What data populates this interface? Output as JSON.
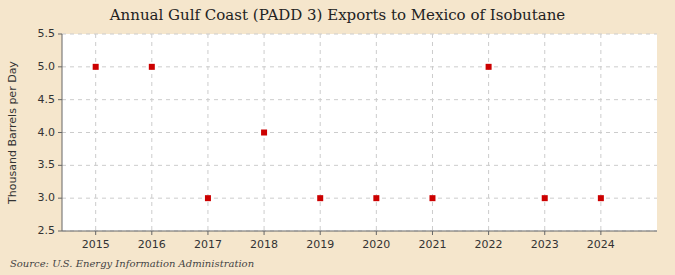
{
  "chart_data": {
    "type": "scatter",
    "title": "Annual Gulf Coast (PADD 3) Exports to Mexico of Isobutane",
    "y_label": "Thousand Barrels per Day",
    "annotations": [
      "Source: U.S. Energy Information Administration"
    ],
    "x": [
      2015,
      2016,
      2017,
      2018,
      2019,
      2020,
      2021,
      2022,
      2023,
      2024
    ],
    "values": [
      5.0,
      5.0,
      3.0,
      4.0,
      3.0,
      3.0,
      3.0,
      5.0,
      3.0,
      3.0
    ],
    "color": "#cc0000",
    "marker": "square",
    "xlim": [
      2014.4,
      2025.0
    ],
    "ylim": [
      2.5,
      5.5
    ],
    "xticks": [
      2015,
      2016,
      2017,
      2018,
      2019,
      2020,
      2021,
      2022,
      2023,
      2024
    ],
    "yticks": [
      2.5,
      {
        "value": 3.0,
        "label": "3.0"
      },
      3.5,
      {
        "value": 4.0,
        "label": "4.0"
      },
      4.5,
      {
        "value": 5.0,
        "label": "5.0"
      },
      5.5
    ],
    "grid": true
  }
}
